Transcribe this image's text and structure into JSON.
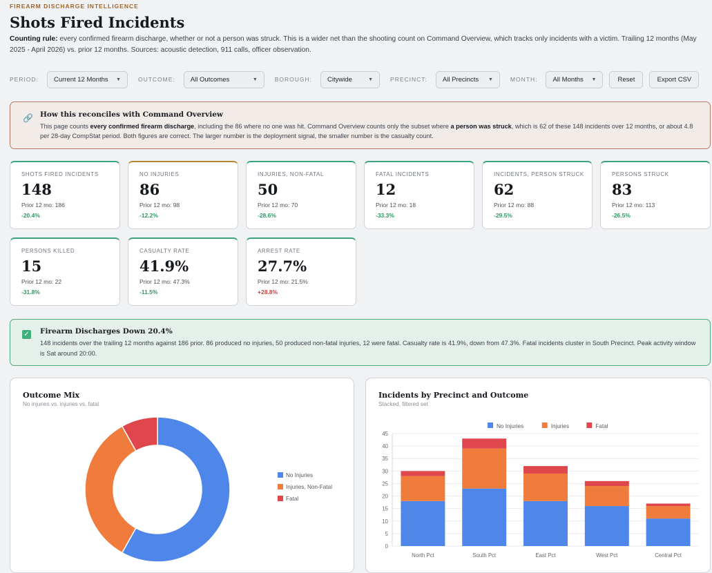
{
  "header": {
    "eyebrow": "FIREARM DISCHARGE INTELLIGENCE",
    "title": "Shots Fired Incidents",
    "rule_label": "Counting rule:",
    "rule_text": " every confirmed firearm discharge, whether or not a person was struck. This is a wider net than the shooting count on Command Overview, which tracks only incidents with a victim. Trailing 12 months (May 2025 - April 2026) vs. prior 12 months. Sources: acoustic detection, 911 calls, officer observation."
  },
  "filters": {
    "period_label": "PERIOD:",
    "period_value": "Current 12 Months",
    "outcome_label": "OUTCOME:",
    "outcome_value": "All Outcomes",
    "borough_label": "BOROUGH:",
    "borough_value": "Citywide",
    "precinct_label": "PRECINCT:",
    "precinct_value": "All Precincts",
    "month_label": "MONTH:",
    "month_value": "All Months",
    "reset_label": "Reset",
    "export_label": "Export CSV"
  },
  "reconcile": {
    "title": "How this reconciles with Command Overview",
    "p1": "This page counts ",
    "b1": "every confirmed firearm discharge",
    "p2": ", including the 86 where no one was hit. Command Overview counts only the subset where ",
    "b2": "a person was struck",
    "p3": ", which is 62 of these 148 incidents over 12 months, or about 4.8 per 28-day CompStat period. Both figures are correct. The larger number is the deployment signal, the smaller number is the casualty count."
  },
  "kpis": [
    {
      "label": "SHOTS FIRED INCIDENTS",
      "value": "148",
      "prior": "Prior 12 mo: 186",
      "change": "-20.4%",
      "accent": "#3aa57a"
    },
    {
      "label": "NO INJURIES",
      "value": "86",
      "prior": "Prior 12 mo: 98",
      "change": "-12.2%",
      "accent": "#b8862f"
    },
    {
      "label": "INJURIES, NON-FATAL",
      "value": "50",
      "prior": "Prior 12 mo: 70",
      "change": "-28.6%",
      "accent": "#3aa57a"
    },
    {
      "label": "FATAL INCIDENTS",
      "value": "12",
      "prior": "Prior 12 mo: 18",
      "change": "-33.3%",
      "accent": "#3aa57a"
    },
    {
      "label": "INCIDENTS, PERSON STRUCK",
      "value": "62",
      "prior": "Prior 12 mo: 88",
      "change": "-29.5%",
      "accent": "#3aa57a"
    },
    {
      "label": "PERSONS STRUCK",
      "value": "83",
      "prior": "Prior 12 mo: 113",
      "change": "-26.5%",
      "accent": "#3aa57a"
    },
    {
      "label": "PERSONS KILLED",
      "value": "15",
      "prior": "Prior 12 mo: 22",
      "change": "-31.8%",
      "accent": "#3aa57a"
    },
    {
      "label": "CASUALTY RATE",
      "value": "41.9%",
      "prior": "Prior 12 mo: 47.3%",
      "change": "-11.5%",
      "accent": "#3aa57a"
    },
    {
      "label": "ARREST RATE",
      "value": "27.7%",
      "prior": "Prior 12 mo: 21.5%",
      "change": "+28.8%",
      "accent": "#3aa57a"
    }
  ],
  "alert": {
    "title": "Firearm Discharges Down 20.4%",
    "text": "148 incidents over the trailing 12 months against 186 prior. 86 produced no injuries, 50 produced non-fatal injuries, 12 were fatal. Casualty rate is 41.9%, down from 47.3%. Fatal incidents cluster in South Precinct. Peak activity window is Sat around 20:00."
  },
  "outcome_panel": {
    "title": "Outcome Mix",
    "subtitle": "No injuries vs. injuries vs. fatal"
  },
  "precinct_panel": {
    "title": "Incidents by Precinct and Outcome",
    "subtitle": "Stacked, filtered set"
  },
  "colors": {
    "no_injuries": "#4f86ea",
    "injuries": "#ef7c3c",
    "fatal": "#e0474c"
  },
  "chart_data": [
    {
      "type": "pie",
      "categories": [
        "No Injuries",
        "Injuries, Non-Fatal",
        "Fatal"
      ],
      "values": [
        86,
        50,
        12
      ],
      "legend_position": "right"
    },
    {
      "type": "bar",
      "stacked": true,
      "categories": [
        "North Pct",
        "South Pct",
        "East Pct",
        "West Pct",
        "Central Pct"
      ],
      "series": [
        {
          "name": "No Injuries",
          "values": [
            18,
            23,
            18,
            16,
            11
          ]
        },
        {
          "name": "Injuries",
          "values": [
            10,
            16,
            11,
            8,
            5
          ]
        },
        {
          "name": "Fatal",
          "values": [
            2,
            4,
            3,
            2,
            1
          ]
        }
      ],
      "ylim": [
        0,
        45
      ],
      "yticks": [
        0,
        5,
        10,
        15,
        20,
        25,
        30,
        35,
        40,
        45
      ],
      "grid": true,
      "legend_position": "top"
    }
  ]
}
